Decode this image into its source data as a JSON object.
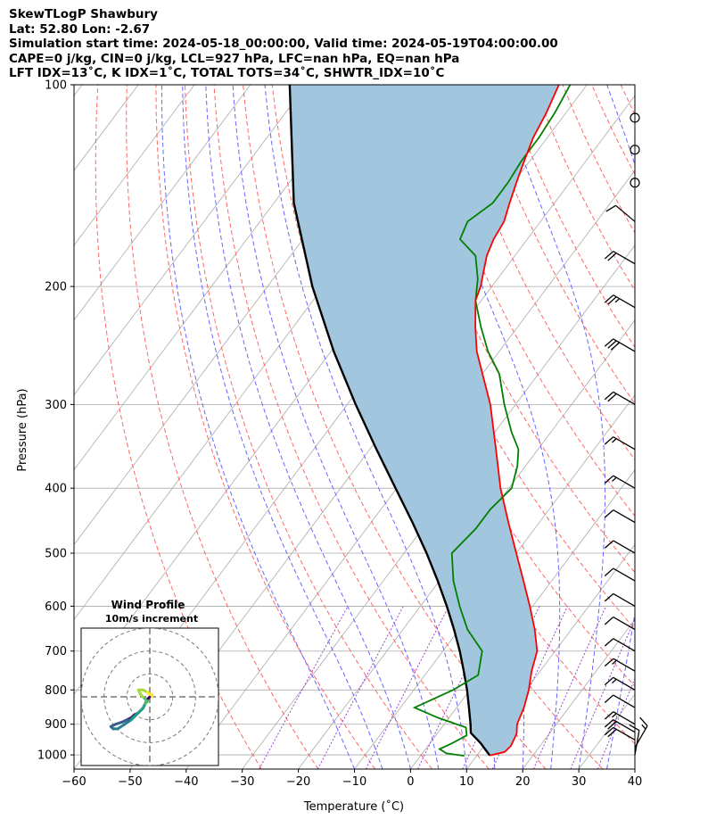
{
  "header": {
    "title": "SkewTLogP Shawbury",
    "latlon": "Lat: 52.80   Lon: -2.67",
    "times": "Simulation start time: 2024-05-18_00:00:00, Valid time: 2024-05-19T04:00:00.00",
    "params": "CAPE=0 j/kg, CIN=0 j/kg, LCL=927 hPa, LFC=nan hPa, EQ=nan hPa",
    "indices": "LFT IDX=13˚C, K IDX=1˚C, TOTAL TOTS=34˚C, SHWTR_IDX=10˚C"
  },
  "colors": {
    "temperature": "#ff0000",
    "dewpoint": "#008000",
    "parcel": "#000000",
    "cape_fill": "#a3c6df",
    "dry_adiabat": "#ff6666",
    "moist_adiabat": "#6666ff",
    "mixing_ratio": "#9944cc",
    "isotherm": "#aaaaaa"
  },
  "chart_data": {
    "type": "line",
    "subtype": "skew-t log-p",
    "xlabel": "Temperature (˚C)",
    "ylabel": "Pressure (hPa)",
    "xlim": [
      -60,
      40
    ],
    "ylim": [
      1050,
      100
    ],
    "y_scale": "log",
    "x_ticks": [
      "−60",
      "−50",
      "−40",
      "−30",
      "−20",
      "−10",
      "0",
      "10",
      "20",
      "30",
      "40"
    ],
    "y_ticks": [
      "100",
      "200",
      "300",
      "400",
      "500",
      "600",
      "700",
      "800",
      "900",
      "1000"
    ],
    "series": [
      {
        "role": "temperature",
        "points": [
          [
            1002,
            12.3
          ],
          [
            990,
            14.5
          ],
          [
            970,
            14.8
          ],
          [
            930,
            14.2
          ],
          [
            900,
            13.0
          ],
          [
            850,
            12.0
          ],
          [
            800,
            10.5
          ],
          [
            750,
            8.5
          ],
          [
            700,
            6.8
          ],
          [
            650,
            3.5
          ],
          [
            600,
            -0.5
          ],
          [
            550,
            -5.0
          ],
          [
            500,
            -10.0
          ],
          [
            450,
            -15.5
          ],
          [
            400,
            -21.5
          ],
          [
            350,
            -27.5
          ],
          [
            300,
            -34.5
          ],
          [
            270,
            -40.0
          ],
          [
            250,
            -44.0
          ],
          [
            230,
            -47.5
          ],
          [
            210,
            -51.0
          ],
          [
            200,
            -52.0
          ],
          [
            180,
            -55.0
          ],
          [
            170,
            -56.0
          ],
          [
            160,
            -56.5
          ],
          [
            150,
            -58.0
          ],
          [
            140,
            -59.5
          ],
          [
            130,
            -61.0
          ],
          [
            120,
            -62.5
          ],
          [
            110,
            -63.5
          ],
          [
            100,
            -65.0
          ]
        ]
      },
      {
        "role": "dewpoint",
        "points": [
          [
            1003,
            7.8
          ],
          [
            995,
            4.3
          ],
          [
            980,
            2.5
          ],
          [
            960,
            4.0
          ],
          [
            935,
            5.5
          ],
          [
            910,
            4.3
          ],
          [
            880,
            -2.0
          ],
          [
            850,
            -7.5
          ],
          [
            800,
            -3.0
          ],
          [
            760,
            -0.5
          ],
          [
            700,
            -3.0
          ],
          [
            650,
            -8.5
          ],
          [
            600,
            -13.0
          ],
          [
            550,
            -17.5
          ],
          [
            500,
            -21.5
          ],
          [
            460,
            -20.5
          ],
          [
            430,
            -20.5
          ],
          [
            400,
            -19.5
          ],
          [
            370,
            -21.5
          ],
          [
            350,
            -23.5
          ],
          [
            330,
            -27.0
          ],
          [
            300,
            -32.0
          ],
          [
            270,
            -37.0
          ],
          [
            250,
            -42.0
          ],
          [
            230,
            -46.5
          ],
          [
            210,
            -51.0
          ],
          [
            195,
            -53.5
          ],
          [
            180,
            -57.0
          ],
          [
            170,
            -62.0
          ],
          [
            160,
            -63.0
          ],
          [
            150,
            -61.0
          ],
          [
            140,
            -61.0
          ],
          [
            130,
            -61.5
          ],
          [
            120,
            -61.5
          ],
          [
            110,
            -62.0
          ],
          [
            100,
            -63.0
          ]
        ]
      },
      {
        "role": "parcel",
        "points": [
          [
            1002,
            12.3
          ],
          [
            960,
            9.0
          ],
          [
            927,
            5.9
          ],
          [
            900,
            4.7
          ],
          [
            850,
            2.2
          ],
          [
            800,
            -0.5
          ],
          [
            750,
            -3.6
          ],
          [
            700,
            -7.0
          ],
          [
            650,
            -10.9
          ],
          [
            600,
            -15.3
          ],
          [
            550,
            -20.3
          ],
          [
            500,
            -26.0
          ],
          [
            450,
            -32.6
          ],
          [
            400,
            -40.2
          ],
          [
            350,
            -48.8
          ],
          [
            300,
            -58.5
          ],
          [
            250,
            -69.5
          ],
          [
            200,
            -82.0
          ],
          [
            150,
            -96.5
          ],
          [
            100,
            -113.0
          ]
        ]
      }
    ],
    "wind_barbs": [
      {
        "p": 1000,
        "speed_kt": 10,
        "dir_deg": 10
      },
      {
        "p": 975,
        "speed_kt": 15,
        "dir_deg": 30
      },
      {
        "p": 950,
        "speed_kt": 20,
        "dir_deg": 300
      },
      {
        "p": 925,
        "speed_kt": 20,
        "dir_deg": 300
      },
      {
        "p": 900,
        "speed_kt": 15,
        "dir_deg": 300
      },
      {
        "p": 850,
        "speed_kt": 10,
        "dir_deg": 300
      },
      {
        "p": 800,
        "speed_kt": 15,
        "dir_deg": 300
      },
      {
        "p": 750,
        "speed_kt": 15,
        "dir_deg": 300
      },
      {
        "p": 700,
        "speed_kt": 10,
        "dir_deg": 300
      },
      {
        "p": 650,
        "speed_kt": 10,
        "dir_deg": 300
      },
      {
        "p": 600,
        "speed_kt": 10,
        "dir_deg": 300
      },
      {
        "p": 550,
        "speed_kt": 10,
        "dir_deg": 300
      },
      {
        "p": 500,
        "speed_kt": 10,
        "dir_deg": 300
      },
      {
        "p": 450,
        "speed_kt": 10,
        "dir_deg": 300
      },
      {
        "p": 400,
        "speed_kt": 15,
        "dir_deg": 300
      },
      {
        "p": 350,
        "speed_kt": 15,
        "dir_deg": 300
      },
      {
        "p": 300,
        "speed_kt": 20,
        "dir_deg": 300
      },
      {
        "p": 250,
        "speed_kt": 30,
        "dir_deg": 300
      },
      {
        "p": 215,
        "speed_kt": 25,
        "dir_deg": 300
      },
      {
        "p": 185,
        "speed_kt": 20,
        "dir_deg": 300
      },
      {
        "p": 160,
        "speed_kt": 10,
        "dir_deg": 310
      },
      {
        "p": 140,
        "speed_kt": 0,
        "dir_deg": 0
      },
      {
        "p": 125,
        "speed_kt": 0,
        "dir_deg": 0
      },
      {
        "p": 112,
        "speed_kt": 0,
        "dir_deg": 0
      }
    ],
    "hodograph": {
      "title": "Wind Profile",
      "subtitle": "10m/s increment",
      "rings_ms": [
        10,
        20,
        30
      ],
      "range_ms": 30,
      "points": [
        [
          0,
          0
        ],
        [
          -1,
          -1
        ],
        [
          -2,
          -3
        ],
        [
          -3,
          -5
        ],
        [
          -5,
          -7
        ],
        [
          -7,
          -8
        ],
        [
          -8,
          -9
        ],
        [
          -10,
          -10
        ],
        [
          -12,
          -11
        ],
        [
          -15,
          -12
        ],
        [
          -17,
          -13
        ],
        [
          -16,
          -14
        ],
        [
          -14,
          -14
        ],
        [
          -11,
          -12
        ],
        [
          -8,
          -10
        ],
        [
          -6,
          -8
        ],
        [
          -4,
          -6
        ],
        [
          -3,
          -5
        ],
        [
          -2,
          -3
        ],
        [
          -1,
          -2
        ],
        [
          -2,
          -1
        ],
        [
          -3,
          0
        ],
        [
          -4,
          1
        ],
        [
          -5,
          3
        ],
        [
          -3,
          3
        ],
        [
          -1,
          2
        ],
        [
          0,
          1
        ],
        [
          1,
          1
        ],
        [
          1,
          0
        ]
      ]
    }
  }
}
